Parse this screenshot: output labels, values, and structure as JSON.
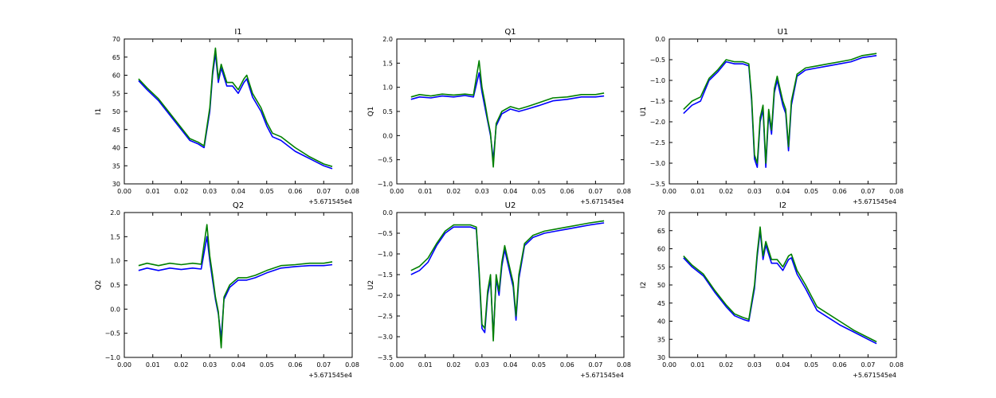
{
  "figure": {
    "background": "#ffffff"
  },
  "colors": {
    "series_1": "#0000ff",
    "series_2": "#008000"
  },
  "chart_data": [
    {
      "type": "line",
      "title": "I1",
      "xlabel": "",
      "ylabel": "I1",
      "xlim": [
        0.0,
        0.08
      ],
      "ylim": [
        30,
        70
      ],
      "x_ticks": [
        "0.00",
        "0.01",
        "0.02",
        "0.03",
        "0.04",
        "0.05",
        "0.06",
        "0.07",
        "0.08"
      ],
      "y_ticks": [
        "30",
        "35",
        "40",
        "45",
        "50",
        "55",
        "60",
        "65",
        "70"
      ],
      "x_offset_text": "+5.671545e4",
      "x": [
        0.005,
        0.008,
        0.012,
        0.016,
        0.02,
        0.023,
        0.026,
        0.028,
        0.03,
        0.031,
        0.032,
        0.033,
        0.034,
        0.036,
        0.038,
        0.04,
        0.042,
        0.043,
        0.045,
        0.048,
        0.05,
        0.052,
        0.055,
        0.06,
        0.065,
        0.07,
        0.073
      ],
      "series": [
        {
          "values": [
            58.5,
            56,
            53,
            49,
            45,
            42,
            41,
            40,
            50,
            60,
            66,
            58,
            62,
            57,
            57,
            55,
            58,
            59,
            54,
            50,
            46,
            43,
            42,
            39,
            37,
            35,
            34.2
          ]
        },
        {
          "values": [
            59,
            56.5,
            53.5,
            49.5,
            45.5,
            42.5,
            41.5,
            40.5,
            51,
            61,
            67.5,
            59,
            63,
            58,
            58,
            56,
            59,
            60,
            55,
            51,
            47,
            44,
            43,
            40,
            37.5,
            35.5,
            34.8
          ]
        }
      ]
    },
    {
      "type": "line",
      "title": "Q1",
      "xlabel": "",
      "ylabel": "Q1",
      "xlim": [
        0.0,
        0.08
      ],
      "ylim": [
        -1.0,
        2.0
      ],
      "x_ticks": [
        "0.00",
        "0.01",
        "0.02",
        "0.03",
        "0.04",
        "0.05",
        "0.06",
        "0.07",
        "0.08"
      ],
      "y_ticks": [
        "−1.0",
        "−0.5",
        "0.0",
        "0.5",
        "1.0",
        "1.5",
        "2.0"
      ],
      "x_offset_text": "+5.671545e4",
      "x": [
        0.005,
        0.008,
        0.012,
        0.016,
        0.02,
        0.024,
        0.027,
        0.029,
        0.03,
        0.031,
        0.032,
        0.033,
        0.034,
        0.035,
        0.037,
        0.04,
        0.043,
        0.046,
        0.05,
        0.055,
        0.06,
        0.065,
        0.07,
        0.073
      ],
      "series": [
        {
          "values": [
            0.75,
            0.8,
            0.78,
            0.82,
            0.8,
            0.83,
            0.8,
            1.3,
            0.9,
            0.6,
            0.3,
            0,
            -0.5,
            0.2,
            0.45,
            0.55,
            0.5,
            0.55,
            0.62,
            0.72,
            0.75,
            0.8,
            0.8,
            0.82
          ]
        },
        {
          "values": [
            0.8,
            0.85,
            0.82,
            0.86,
            0.84,
            0.86,
            0.84,
            1.55,
            1.0,
            0.7,
            0.35,
            0.05,
            -0.65,
            0.25,
            0.5,
            0.6,
            0.55,
            0.6,
            0.68,
            0.78,
            0.8,
            0.85,
            0.85,
            0.88
          ]
        }
      ]
    },
    {
      "type": "line",
      "title": "U1",
      "xlabel": "",
      "ylabel": "U1",
      "xlim": [
        0.0,
        0.08
      ],
      "ylim": [
        -3.5,
        0.0
      ],
      "x_ticks": [
        "0.00",
        "0.01",
        "0.02",
        "0.03",
        "0.04",
        "0.05",
        "0.06",
        "0.07",
        "0.08"
      ],
      "y_ticks": [
        "−3.5",
        "−3.0",
        "−2.5",
        "−2.0",
        "−1.5",
        "−1.0",
        "−0.5",
        "0.0"
      ],
      "x_offset_text": "+5.671545e4",
      "x": [
        0.005,
        0.008,
        0.011,
        0.014,
        0.017,
        0.02,
        0.023,
        0.026,
        0.028,
        0.029,
        0.03,
        0.031,
        0.032,
        0.033,
        0.034,
        0.035,
        0.036,
        0.037,
        0.038,
        0.04,
        0.041,
        0.042,
        0.043,
        0.045,
        0.048,
        0.052,
        0.056,
        0.06,
        0.064,
        0.068,
        0.073
      ],
      "series": [
        {
          "values": [
            -1.8,
            -1.6,
            -1.5,
            -1.0,
            -0.8,
            -0.55,
            -0.6,
            -0.6,
            -0.65,
            -1.5,
            -2.9,
            -3.1,
            -2.0,
            -1.7,
            -3.1,
            -1.8,
            -2.3,
            -1.3,
            -1.0,
            -1.6,
            -1.8,
            -2.7,
            -1.6,
            -0.9,
            -0.75,
            -0.7,
            -0.65,
            -0.6,
            -0.55,
            -0.45,
            -0.4
          ]
        },
        {
          "values": [
            -1.7,
            -1.5,
            -1.4,
            -0.95,
            -0.75,
            -0.5,
            -0.55,
            -0.55,
            -0.6,
            -1.4,
            -2.8,
            -3.0,
            -1.9,
            -1.6,
            -3.0,
            -1.7,
            -2.2,
            -1.2,
            -0.9,
            -1.5,
            -1.7,
            -2.6,
            -1.5,
            -0.85,
            -0.7,
            -0.65,
            -0.6,
            -0.55,
            -0.5,
            -0.4,
            -0.35
          ]
        }
      ]
    },
    {
      "type": "line",
      "title": "Q2",
      "xlabel": "",
      "ylabel": "Q2",
      "xlim": [
        0.0,
        0.08
      ],
      "ylim": [
        -1.0,
        2.0
      ],
      "x_ticks": [
        "0.00",
        "0.01",
        "0.02",
        "0.03",
        "0.04",
        "0.05",
        "0.06",
        "0.07",
        "0.08"
      ],
      "y_ticks": [
        "−1.0",
        "−0.5",
        "0.0",
        "0.5",
        "1.0",
        "1.5",
        "2.0"
      ],
      "x_offset_text": "+5.671545e4",
      "x": [
        0.005,
        0.008,
        0.012,
        0.016,
        0.02,
        0.024,
        0.027,
        0.029,
        0.03,
        0.031,
        0.032,
        0.033,
        0.034,
        0.035,
        0.037,
        0.04,
        0.043,
        0.046,
        0.05,
        0.055,
        0.06,
        0.065,
        0.07,
        0.073
      ],
      "series": [
        {
          "values": [
            0.8,
            0.85,
            0.8,
            0.85,
            0.82,
            0.85,
            0.83,
            1.5,
            1.0,
            0.6,
            0.2,
            -0.1,
            -0.6,
            0.2,
            0.45,
            0.6,
            0.6,
            0.65,
            0.75,
            0.85,
            0.88,
            0.9,
            0.9,
            0.92
          ]
        },
        {
          "values": [
            0.9,
            0.95,
            0.9,
            0.95,
            0.92,
            0.95,
            0.93,
            1.75,
            1.1,
            0.7,
            0.25,
            -0.05,
            -0.8,
            0.25,
            0.5,
            0.65,
            0.65,
            0.7,
            0.8,
            0.9,
            0.92,
            0.95,
            0.95,
            0.98
          ]
        }
      ]
    },
    {
      "type": "line",
      "title": "U2",
      "xlabel": "",
      "ylabel": "U2",
      "xlim": [
        0.0,
        0.08
      ],
      "ylim": [
        -3.5,
        0.0
      ],
      "x_ticks": [
        "0.00",
        "0.01",
        "0.02",
        "0.03",
        "0.04",
        "0.05",
        "0.06",
        "0.07",
        "0.08"
      ],
      "y_ticks": [
        "−3.5",
        "−3.0",
        "−2.5",
        "−2.0",
        "−1.5",
        "−1.0",
        "−0.5",
        "0.0"
      ],
      "x_offset_text": "+5.671545e4",
      "x": [
        0.005,
        0.008,
        0.011,
        0.014,
        0.017,
        0.02,
        0.023,
        0.026,
        0.028,
        0.029,
        0.03,
        0.031,
        0.032,
        0.033,
        0.034,
        0.035,
        0.036,
        0.037,
        0.038,
        0.04,
        0.041,
        0.042,
        0.043,
        0.045,
        0.048,
        0.052,
        0.056,
        0.06,
        0.064,
        0.068,
        0.073
      ],
      "series": [
        {
          "values": [
            -1.5,
            -1.4,
            -1.2,
            -0.8,
            -0.5,
            -0.35,
            -0.35,
            -0.35,
            -0.4,
            -1.5,
            -2.8,
            -2.9,
            -2.0,
            -1.6,
            -3.0,
            -1.6,
            -2.0,
            -1.3,
            -0.9,
            -1.5,
            -1.8,
            -2.6,
            -1.6,
            -0.8,
            -0.6,
            -0.5,
            -0.45,
            -0.4,
            -0.35,
            -0.3,
            -0.25
          ]
        },
        {
          "values": [
            -1.4,
            -1.3,
            -1.1,
            -0.75,
            -0.45,
            -0.3,
            -0.3,
            -0.3,
            -0.35,
            -1.4,
            -2.7,
            -2.8,
            -1.9,
            -1.5,
            -3.1,
            -1.5,
            -1.9,
            -1.2,
            -0.8,
            -1.4,
            -1.7,
            -2.5,
            -1.5,
            -0.75,
            -0.55,
            -0.45,
            -0.4,
            -0.35,
            -0.3,
            -0.25,
            -0.2
          ]
        }
      ]
    },
    {
      "type": "line",
      "title": "I2",
      "xlabel": "",
      "ylabel": "I2",
      "xlim": [
        0.0,
        0.08
      ],
      "ylim": [
        30,
        70
      ],
      "x_ticks": [
        "0.00",
        "0.01",
        "0.02",
        "0.03",
        "0.04",
        "0.05",
        "0.06",
        "0.07",
        "0.08"
      ],
      "y_ticks": [
        "30",
        "35",
        "40",
        "45",
        "50",
        "55",
        "60",
        "65",
        "70"
      ],
      "x_offset_text": "+5.671545e4",
      "x": [
        0.005,
        0.008,
        0.012,
        0.016,
        0.02,
        0.023,
        0.026,
        0.028,
        0.03,
        0.031,
        0.032,
        0.033,
        0.034,
        0.036,
        0.038,
        0.04,
        0.042,
        0.043,
        0.045,
        0.048,
        0.05,
        0.052,
        0.055,
        0.06,
        0.065,
        0.07,
        0.073
      ],
      "series": [
        {
          "values": [
            57.5,
            55,
            52.5,
            48,
            44,
            41.5,
            40.5,
            40,
            49,
            58,
            65,
            57,
            61,
            56,
            56,
            54,
            57,
            57.5,
            53,
            49,
            46,
            43,
            41.5,
            39,
            37,
            35,
            33.8
          ]
        },
        {
          "values": [
            58,
            55.5,
            53,
            48.5,
            44.5,
            42,
            41,
            40.5,
            50,
            59,
            66,
            58,
            62,
            57,
            57,
            55,
            58,
            58.5,
            54,
            50,
            47,
            44,
            42.5,
            40,
            37.5,
            35.5,
            34.3
          ]
        }
      ]
    }
  ]
}
